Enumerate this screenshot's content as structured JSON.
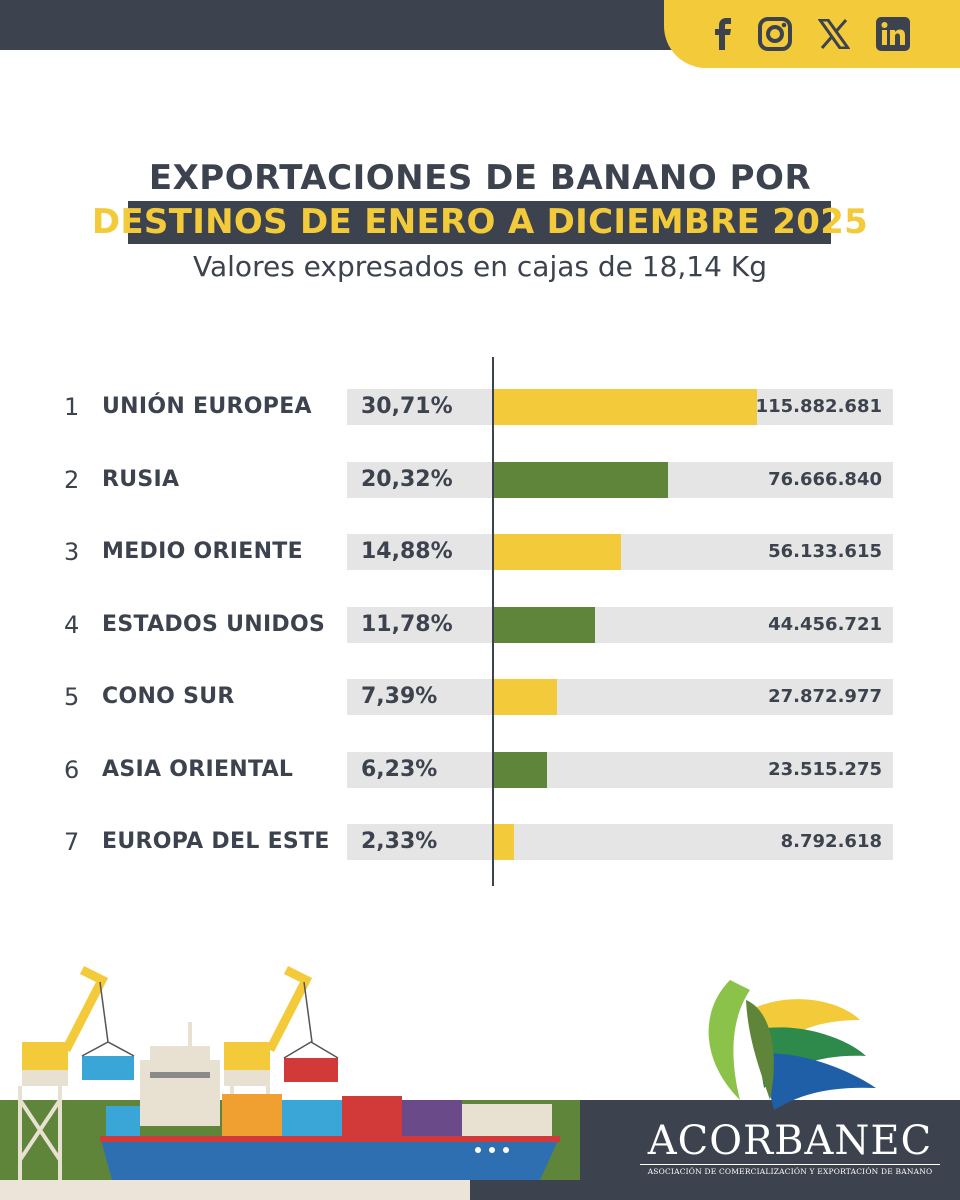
{
  "header": {
    "social_icons": [
      "facebook-icon",
      "instagram-icon",
      "x-icon",
      "linkedin-icon"
    ],
    "bar_color": "#3d434e",
    "accent_color": "#f3cb3a"
  },
  "chart_data": {
    "type": "bar",
    "title": "EXPORTACIONES DE BANANO POR",
    "subtitle": "DESTINOS DE ENERO A DICIEMBRE 2025",
    "note": "Valores expresados en cajas de 18,14 Kg",
    "orientation": "horizontal",
    "xlim": [
      0,
      115882681
    ],
    "rows": [
      {
        "rank": "1",
        "name": "UNIÓN EUROPEA",
        "percent": "30,71%",
        "value": 115882681,
        "value_label": "115.882.681",
        "color": "#f3cb3a"
      },
      {
        "rank": "2",
        "name": "RUSIA",
        "percent": "20,32%",
        "value": 76666840,
        "value_label": "76.666.840",
        "color": "#5e853a"
      },
      {
        "rank": "3",
        "name": "MEDIO ORIENTE",
        "percent": "14,88%",
        "value": 56133615,
        "value_label": "56.133.615",
        "color": "#f3cb3a"
      },
      {
        "rank": "4",
        "name": "ESTADOS UNIDOS",
        "percent": "11,78%",
        "value": 44456721,
        "value_label": "44.456.721",
        "color": "#5e853a"
      },
      {
        "rank": "5",
        "name": "CONO SUR",
        "percent": "7,39%",
        "value": 27872977,
        "value_label": "27.872.977",
        "color": "#f3cb3a"
      },
      {
        "rank": "6",
        "name": "ASIA ORIENTAL",
        "percent": "6,23%",
        "value": 23515275,
        "value_label": "23.515.275",
        "color": "#5e853a"
      },
      {
        "rank": "7",
        "name": "EUROPA DEL ESTE",
        "percent": "2,33%",
        "value": 8792618,
        "value_label": "8.792.618",
        "color": "#f3cb3a"
      }
    ]
  },
  "footer": {
    "brand": "ACORBANEC",
    "brand_subtitle": "ASOCIACIÓN DE COMERCIALIZACIÓN Y EXPORTACIÓN DE BANANO"
  }
}
